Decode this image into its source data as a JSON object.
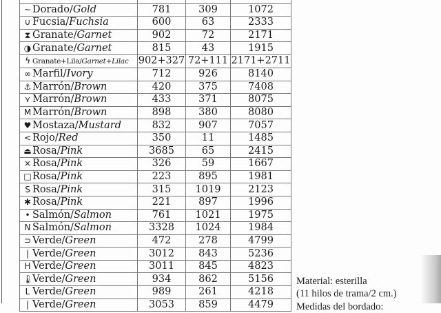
{
  "rows": [
    {
      "symbol": "",
      "es": "Dorado",
      "en": "Gold",
      "a": "",
      "b": "",
      "c": ""
    },
    {
      "symbol": "~",
      "es": "Dorado",
      "en": "Gold",
      "a": "781",
      "b": "309",
      "c": "1072"
    },
    {
      "symbol": "∪",
      "es": "Fucsia",
      "en": "Fuchsia",
      "a": "600",
      "b": "63",
      "c": "2333"
    },
    {
      "symbol": "⧗",
      "es": "Granate",
      "en": "Garnet",
      "a": "902",
      "b": "72",
      "c": "2171"
    },
    {
      "symbol": "◑",
      "es": "Granate",
      "en": "Garnet",
      "a": "815",
      "b": "43",
      "c": "1915"
    },
    {
      "symbol": "ϟ",
      "es": "Granate+Lila",
      "en": "Garnet+Lilac",
      "a": "902+327",
      "b": "72+111",
      "c": "2171+2711",
      "small": true
    },
    {
      "symbol": "∞",
      "es": "Marfil",
      "en": "Ivory",
      "a": "712",
      "b": "926",
      "c": "8140"
    },
    {
      "symbol": "⚓",
      "es": "Marrón",
      "en": "Brown",
      "a": "420",
      "b": "375",
      "c": "7408"
    },
    {
      "symbol": "⋎",
      "es": "Marrón",
      "en": "Brown",
      "a": "433",
      "b": "371",
      "c": "8075"
    },
    {
      "symbol": "M",
      "es": "Marrón",
      "en": "Brown",
      "a": "898",
      "b": "380",
      "c": "8080"
    },
    {
      "symbol": "♥",
      "es": "Mostaza",
      "en": "Mustard",
      "a": "832",
      "b": "907",
      "c": "7057"
    },
    {
      "symbol": "<",
      "es": "Rojo",
      "en": "Red",
      "a": "350",
      "b": "11",
      "c": "1485"
    },
    {
      "symbol": "⏏",
      "es": "Rosa",
      "en": "Pink",
      "a": "3685",
      "b": "65",
      "c": "2415"
    },
    {
      "symbol": "×",
      "es": "Rosa",
      "en": "Pink",
      "a": "326",
      "b": "59",
      "c": "1667"
    },
    {
      "symbol": "□",
      "es": "Rosa",
      "en": "Pink",
      "a": "223",
      "b": "895",
      "c": "1981"
    },
    {
      "symbol": "S",
      "es": "Rosa",
      "en": "Pink",
      "a": "315",
      "b": "1019",
      "c": "2123"
    },
    {
      "symbol": "✱",
      "es": "Rosa",
      "en": "Pink",
      "a": "221",
      "b": "897",
      "c": "1996"
    },
    {
      "symbol": "•",
      "es": "Salmón",
      "en": "Salmon",
      "a": "761",
      "b": "1021",
      "c": "1975"
    },
    {
      "symbol": "N",
      "es": "Salmón",
      "en": "Salmon",
      "a": "3328",
      "b": "1024",
      "c": "1984"
    },
    {
      "symbol": "⊃",
      "es": "Verde",
      "en": "Green",
      "a": "472",
      "b": "278",
      "c": "4799"
    },
    {
      "symbol": "|",
      "es": "Verde",
      "en": "Green",
      "a": "3012",
      "b": "843",
      "c": "5236"
    },
    {
      "symbol": "H",
      "es": "Verde",
      "en": "Green",
      "a": "3011",
      "b": "845",
      "c": "4823"
    },
    {
      "symbol": "🌡",
      "es": "Verde",
      "en": "Green",
      "a": "934",
      "b": "862",
      "c": "5156"
    },
    {
      "symbol": "L",
      "es": "Verde",
      "en": "Green",
      "a": "989",
      "b": "261",
      "c": "4218"
    },
    {
      "symbol": "|",
      "es": "Verde",
      "en": "Green",
      "a": "3053",
      "b": "859",
      "c": "4479"
    }
  ],
  "notes": {
    "material": "Material: esterilla",
    "threads": "(11 hilos de trama/2 cm.)",
    "sizes": "Medidas del bordado:"
  }
}
